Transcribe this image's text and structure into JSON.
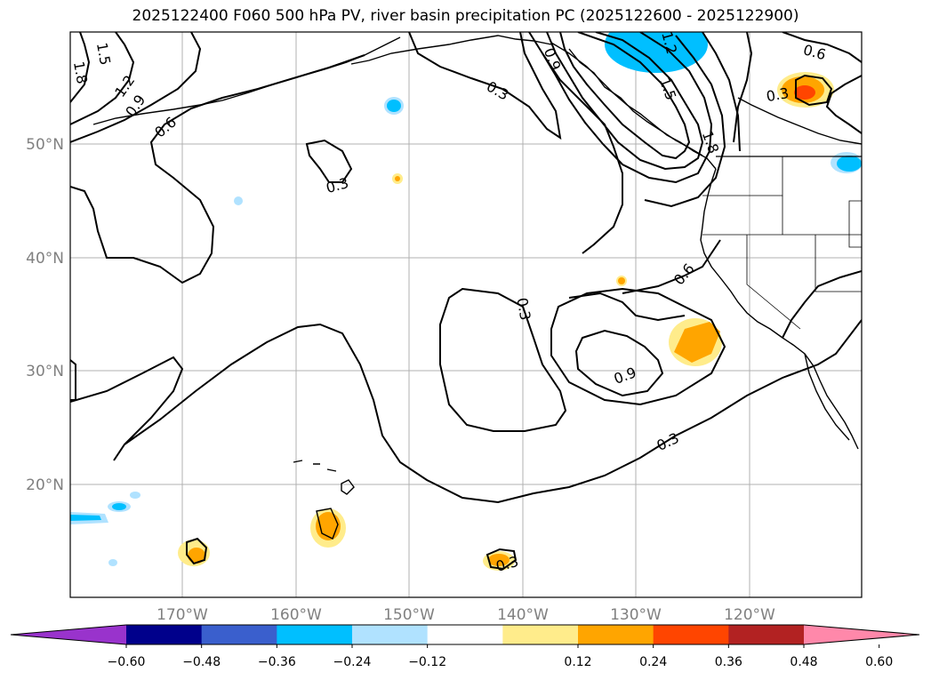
{
  "title": "2025122400 F060 500 hPa PV, river basin precipitation PC (2025122600 - 2025122900)",
  "map": {
    "lat_labels": [
      "50°N",
      "40°N",
      "30°N",
      "20°N"
    ],
    "lon_labels": [
      "170°W",
      "160°W",
      "150°W",
      "140°W",
      "130°W",
      "120°W"
    ],
    "contour_labels": [
      "1.8",
      "1.5",
      "1.2",
      "0.9",
      "0.6",
      "0.3",
      "0.3",
      "0.3",
      "0.6",
      "0.9",
      "0.3",
      "0.3",
      "0.9",
      "1.2",
      "1.5",
      "1.8",
      "0.6",
      "0.3"
    ]
  },
  "colorbar": {
    "ticks": [
      "−0.60",
      "−0.48",
      "−0.36",
      "−0.24",
      "−0.12",
      "0.12",
      "0.24",
      "0.36",
      "0.48",
      "0.60"
    ],
    "colors": [
      "#9933cc",
      "#00008b",
      "#3a5fcd",
      "#00bfff",
      "#b0e2ff",
      "#ffffff",
      "#ffec8b",
      "#ffa500",
      "#ff4500",
      "#b22222",
      "#ff88aa"
    ]
  },
  "colors": {
    "grid": "#b0b0b0",
    "contour": "#000000",
    "coast": "#000000"
  }
}
